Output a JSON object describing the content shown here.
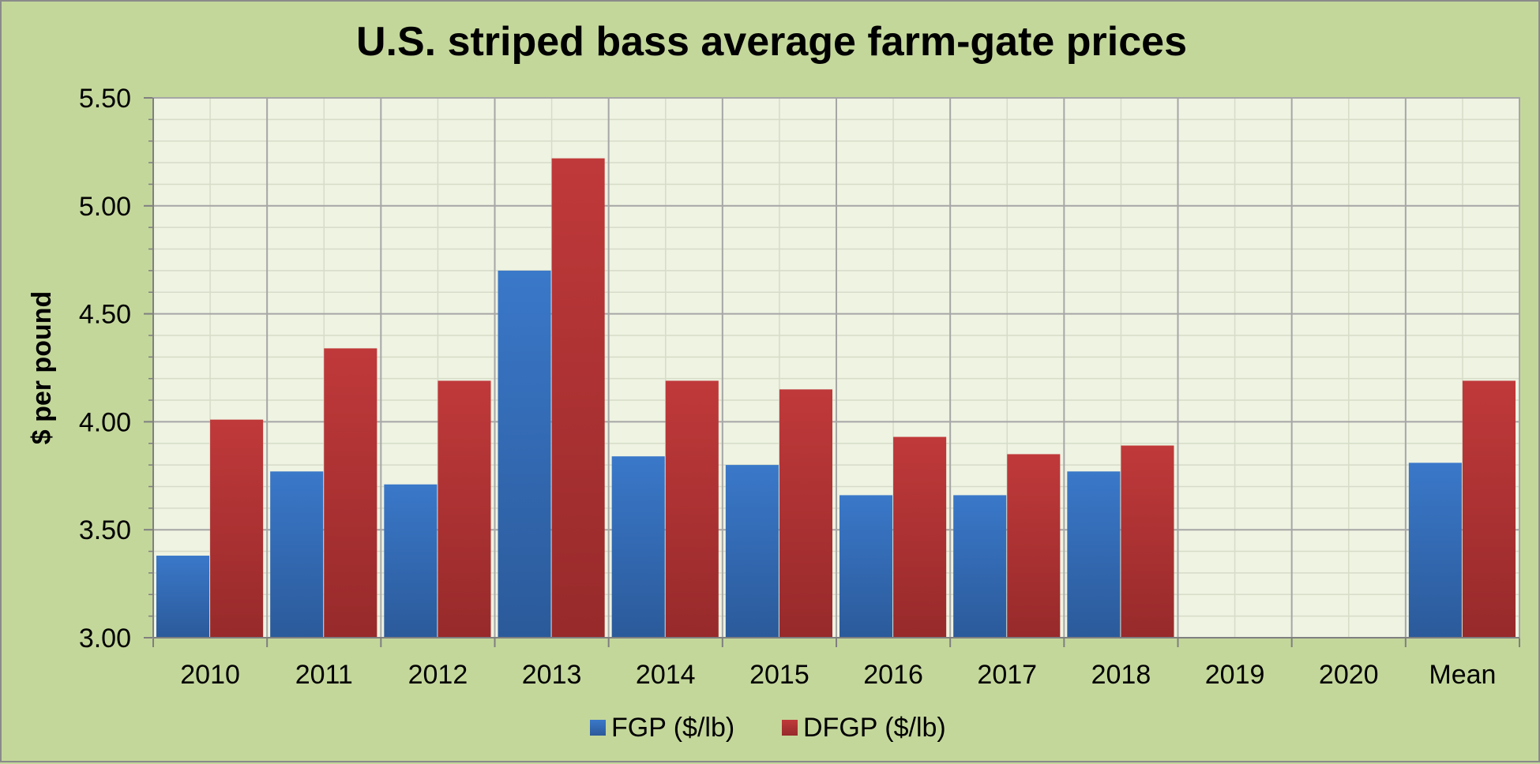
{
  "chart_data": {
    "type": "bar",
    "title": "U.S. striped bass average farm-gate prices",
    "xlabel": "",
    "ylabel": "$ per pound",
    "ylim": [
      3.0,
      5.5
    ],
    "yticks": [
      "3.00",
      "3.50",
      "4.00",
      "4.50",
      "5.00",
      "5.50"
    ],
    "categories": [
      "2010",
      "2011",
      "2012",
      "2013",
      "2014",
      "2015",
      "2016",
      "2017",
      "2018",
      "2019",
      "2020",
      "Mean"
    ],
    "series": [
      {
        "name": "FGP ($/lb)",
        "color": "#3a78c9",
        "values": [
          3.38,
          3.77,
          3.71,
          4.7,
          3.84,
          3.8,
          3.66,
          3.66,
          3.77,
          null,
          null,
          3.81
        ]
      },
      {
        "name": "DFGP ($/lb)",
        "color": "#c0393a",
        "values": [
          4.01,
          4.34,
          4.19,
          5.22,
          4.19,
          4.15,
          3.93,
          3.85,
          3.89,
          null,
          null,
          4.19
        ]
      }
    ],
    "grid": true,
    "legend_position": "bottom-center",
    "colors": {
      "background": "#c4d79b",
      "plot_area": "#eef3e2",
      "gridline": "#a6a6a6"
    }
  }
}
